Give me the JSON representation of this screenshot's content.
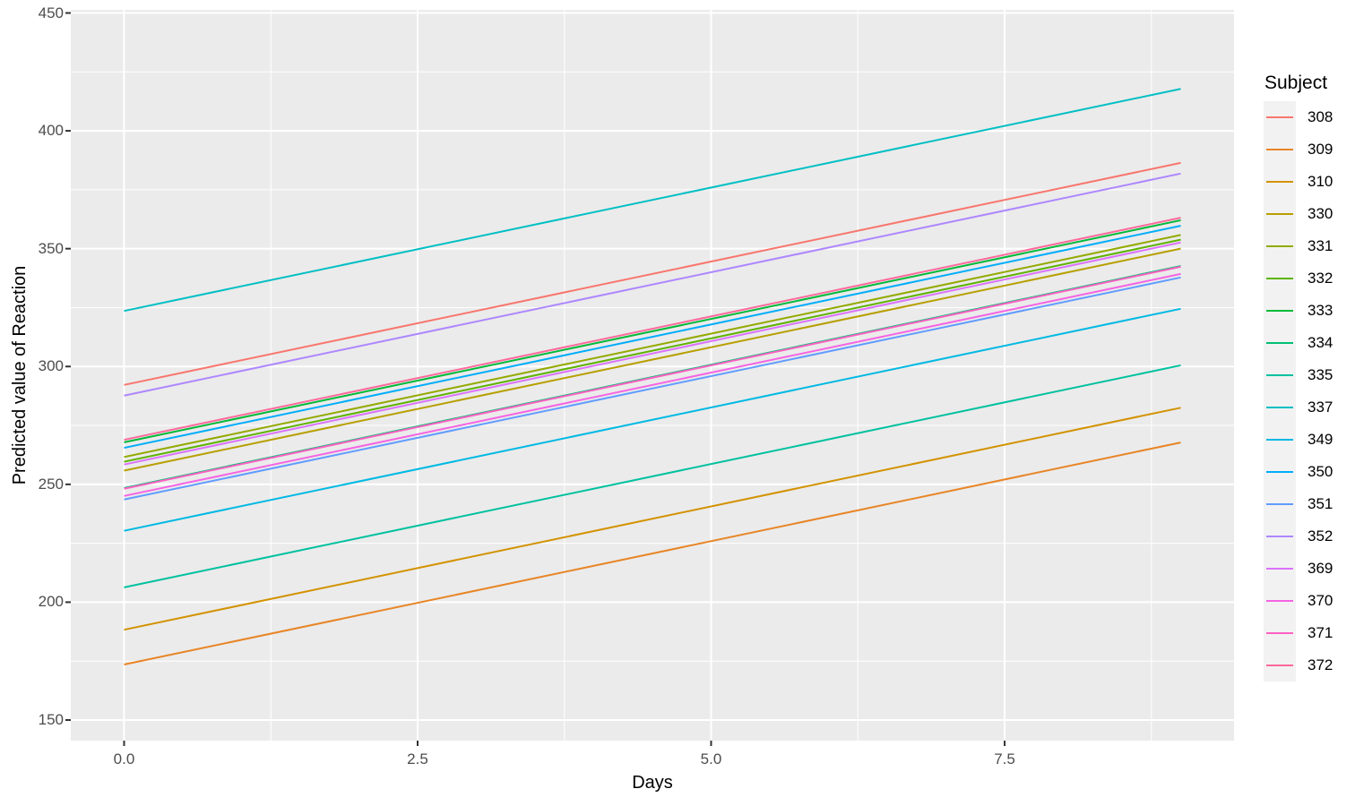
{
  "chart_data": {
    "type": "line",
    "title": "",
    "xlabel": "Days",
    "ylabel": "Predicted value of Reaction",
    "legend_title": "Subject",
    "legend_position": "right",
    "grid": true,
    "x_range": [
      0,
      9
    ],
    "x_domain": [
      -0.454,
      9.454
    ],
    "y_domain": [
      141.26,
      451.33
    ],
    "x_ticks": {
      "values": [
        0,
        2.5,
        5,
        7.5
      ],
      "labels": [
        "0.0",
        "2.5",
        "5.0",
        "7.5"
      ]
    },
    "y_ticks": {
      "values": [
        150,
        200,
        250,
        300,
        350,
        400,
        450
      ],
      "labels": [
        "150",
        "200",
        "250",
        "300",
        "350",
        "400",
        "450"
      ]
    },
    "x_minor": [
      1.25,
      3.75,
      6.25,
      8.75
    ],
    "y_minor": [
      175,
      225,
      275,
      325,
      375,
      425
    ],
    "slope_per_day": 10.467,
    "series": [
      {
        "subject": "308",
        "color": "#F8766D",
        "intercept": 292.19
      },
      {
        "subject": "309",
        "color": "#E88526",
        "intercept": 173.56
      },
      {
        "subject": "310",
        "color": "#D39200",
        "intercept": 188.3
      },
      {
        "subject": "330",
        "color": "#B79F00",
        "intercept": 255.82
      },
      {
        "subject": "331",
        "color": "#93AA00",
        "intercept": 261.6
      },
      {
        "subject": "332",
        "color": "#5EB300",
        "intercept": 259.6
      },
      {
        "subject": "333",
        "color": "#00BA38",
        "intercept": 267.85
      },
      {
        "subject": "334",
        "color": "#00BF74",
        "intercept": 248.42
      },
      {
        "subject": "335",
        "color": "#00C19F",
        "intercept": 206.29
      },
      {
        "subject": "337",
        "color": "#00BFC4",
        "intercept": 323.59
      },
      {
        "subject": "349",
        "color": "#00B9E3",
        "intercept": 230.29
      },
      {
        "subject": "350",
        "color": "#00ADFA",
        "intercept": 265.5
      },
      {
        "subject": "351",
        "color": "#619CFF",
        "intercept": 243.58
      },
      {
        "subject": "352",
        "color": "#AE87FF",
        "intercept": 287.66
      },
      {
        "subject": "369",
        "color": "#DB72FB",
        "intercept": 258.42
      },
      {
        "subject": "370",
        "color": "#F564E3",
        "intercept": 245.07
      },
      {
        "subject": "371",
        "color": "#FF61C3",
        "intercept": 248.13
      },
      {
        "subject": "372",
        "color": "#FF699C",
        "intercept": 268.92
      }
    ],
    "colors": {
      "panel_bg": "#EBEBEB",
      "grid": "#FFFFFF",
      "tick_mark": "#333333",
      "tick_label": "#4D4D4D",
      "legend_key_bg": "#F2F2F2"
    }
  }
}
